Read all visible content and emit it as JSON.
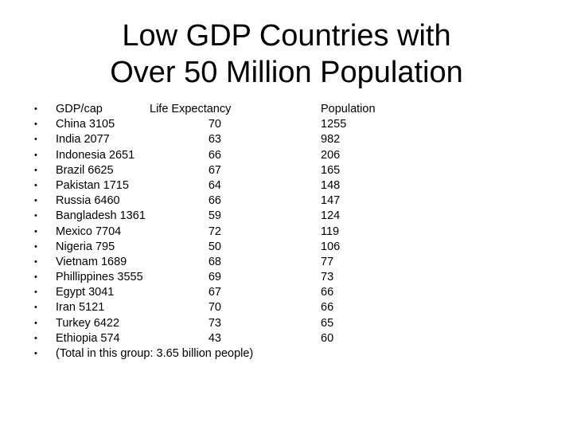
{
  "slide": {
    "title_line1": "Low GDP Countries with",
    "title_line2": "Over 50 Million Population",
    "bullet_symbol": "•",
    "header": {
      "col1": "GDP/cap",
      "col2": "Life Expectancy",
      "col3": "Population"
    },
    "rows": [
      {
        "country_gdp": "China 3105",
        "life": "70",
        "population": "1255"
      },
      {
        "country_gdp": "India  2077",
        "life": "63",
        "population": "982"
      },
      {
        "country_gdp": "Indonesia 2651",
        "life": "66",
        "population": "206"
      },
      {
        "country_gdp": "Brazil  6625",
        "life": "67",
        "population": "165"
      },
      {
        "country_gdp": "Pakistan 1715",
        "life": "64",
        "population": "148"
      },
      {
        "country_gdp": "Russia  6460",
        "life": "66",
        "population": "147"
      },
      {
        "country_gdp": "Bangladesh  1361",
        "life": "59",
        "population": "124"
      },
      {
        "country_gdp": "Mexico  7704",
        "life": "72",
        "population": "119"
      },
      {
        "country_gdp": "Nigeria  795",
        "life": "50",
        "population": "106"
      },
      {
        "country_gdp": "Vietnam 1689",
        "life": "68",
        "population": "77"
      },
      {
        "country_gdp": "Phillippines  3555",
        "life": "69",
        "population": "73"
      },
      {
        "country_gdp": "Egypt 3041",
        "life": "67",
        "population": "66"
      },
      {
        "country_gdp": "Iran 5121",
        "life": "70",
        "population": "66"
      },
      {
        "country_gdp": "Turkey  6422",
        "life": "73",
        "population": "65"
      },
      {
        "country_gdp": "Ethiopia  574",
        "life": "43",
        "population": "60"
      }
    ],
    "footer": "(Total in this group: 3.65 billion people)"
  }
}
